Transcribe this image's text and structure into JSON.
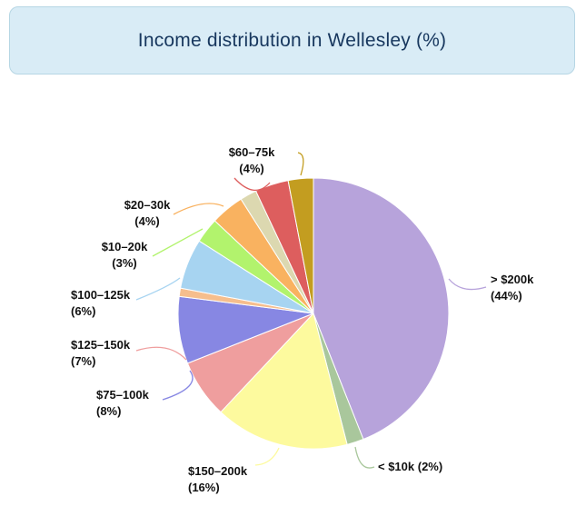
{
  "header": {
    "title": "Income distribution in Wellesley (%)"
  },
  "chart_data": {
    "type": "pie",
    "title": "Income distribution in Wellesley (%)",
    "unit": "%",
    "start_angle": "12-o'clock",
    "direction": "clockwise",
    "legend": "none",
    "label_style": "outside labels with curved leader lines, percent on second line",
    "slices": [
      {
        "id": "gt-200k",
        "label": "> $200k",
        "value": 44,
        "color": "#b7a3db",
        "label_visible": true
      },
      {
        "id": "lt-10k",
        "label": "< $10k",
        "value": 2,
        "color": "#a9c79c",
        "label_visible": true
      },
      {
        "id": "150-200k",
        "label": "$150–200k",
        "value": 16,
        "color": "#fdfa9e",
        "label_visible": true
      },
      {
        "id": "125-150k",
        "label": "$125–150k",
        "value": 7,
        "color": "#ef9e9e",
        "label_visible": true
      },
      {
        "id": "75-100k",
        "label": "$75–100k",
        "value": 8,
        "color": "#8787e3",
        "label_visible": true
      },
      {
        "id": "unlabeled-a",
        "label": "",
        "value": 1,
        "color": "#f6be8d",
        "label_visible": false
      },
      {
        "id": "100-125k",
        "label": "$100–125k",
        "value": 6,
        "color": "#a7d4f1",
        "label_visible": true
      },
      {
        "id": "10-20k",
        "label": "$10–20k",
        "value": 3,
        "color": "#b2f36d",
        "label_visible": true
      },
      {
        "id": "20-30k",
        "label": "$20–30k",
        "value": 4,
        "color": "#f9b260",
        "label_visible": true
      },
      {
        "id": "unlabeled-b",
        "label": "",
        "value": 2,
        "color": "#dcd8b0",
        "label_visible": false
      },
      {
        "id": "60-75k",
        "label": "$60–75k",
        "value": 4,
        "color": "#dd5e5e",
        "label_visible": true
      },
      {
        "id": "unlabeled-c",
        "label": "",
        "value": 3,
        "color": "#c39d20",
        "label_visible": false
      }
    ]
  }
}
